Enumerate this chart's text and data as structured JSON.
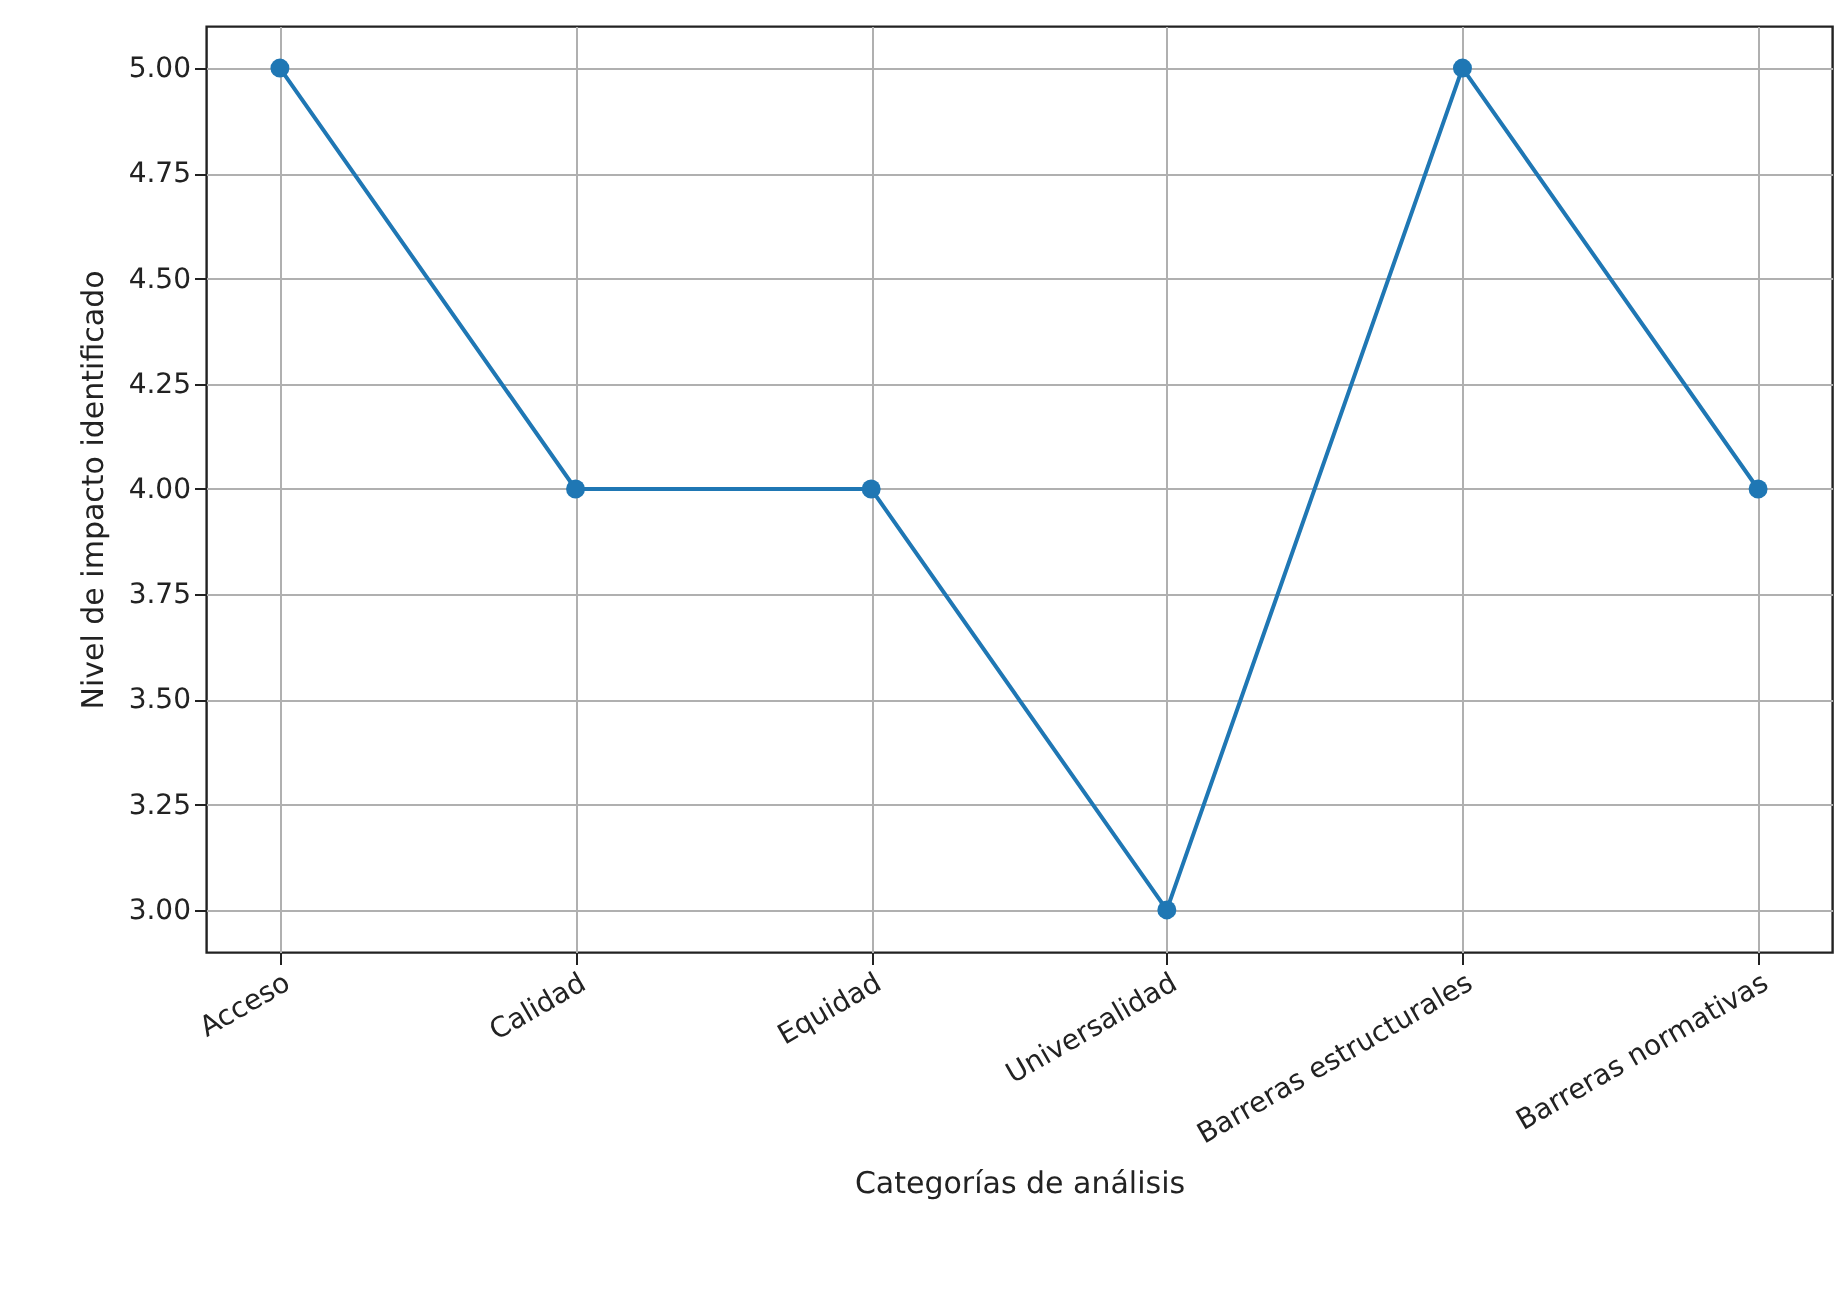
{
  "chart_data": {
    "type": "line",
    "xlabel": "Categorías de análisis",
    "ylabel": "Nivel de impacto identificado",
    "categories": [
      "Acceso",
      "Calidad",
      "Equidad",
      "Universalidad",
      "Barreras estructurales",
      "Barreras normativas"
    ],
    "series": [
      {
        "color": "#1f77b4",
        "values": [
          5,
          4,
          4,
          3,
          5,
          4
        ]
      }
    ],
    "ylim": [
      2.9,
      5.1
    ],
    "yticks": [
      {
        "value": 3,
        "label": "3.00"
      },
      {
        "value": 3.25,
        "label": "3.25"
      },
      {
        "value": 3.5,
        "label": "3.50"
      },
      {
        "value": 3.75,
        "label": "3.75"
      },
      {
        "value": 4,
        "label": "4.00"
      },
      {
        "value": 4.25,
        "label": "4.25"
      },
      {
        "value": 4.5,
        "label": "4.50"
      },
      {
        "value": 4.75,
        "label": "4.75"
      },
      {
        "value": 5,
        "label": "5.00"
      }
    ],
    "grid": true,
    "marker": "circle",
    "line_style": "solid"
  }
}
